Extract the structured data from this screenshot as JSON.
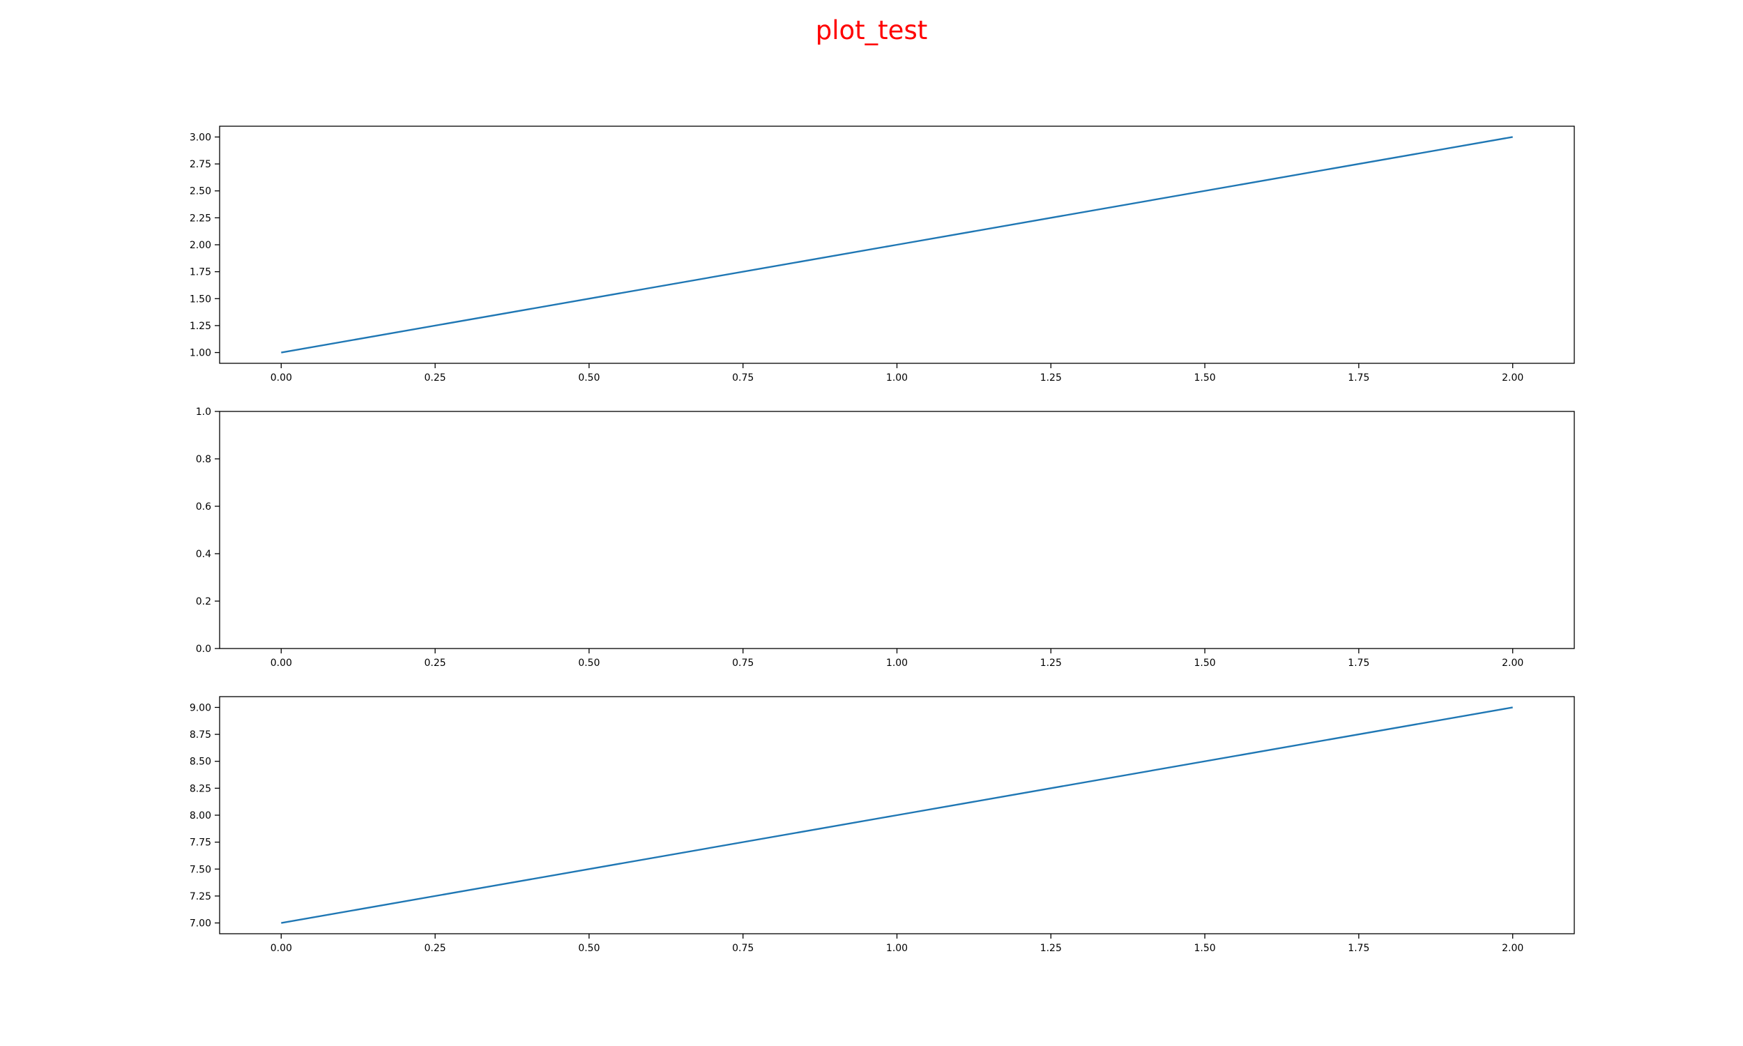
{
  "figure": {
    "title": "plot_test",
    "title_color": "#ff0000"
  },
  "chart_data": [
    {
      "type": "line",
      "title": "",
      "xlabel": "",
      "ylabel": "",
      "xlim": [
        -0.1,
        2.1
      ],
      "ylim": [
        0.9,
        3.1
      ],
      "x_ticks": [
        0,
        0.25,
        0.5,
        0.75,
        1,
        1.25,
        1.5,
        1.75,
        2
      ],
      "x_tick_labels": [
        "0.00",
        "0.25",
        "0.50",
        "0.75",
        "1.00",
        "1.25",
        "1.50",
        "1.75",
        "2.00"
      ],
      "y_ticks": [
        1,
        1.25,
        1.5,
        1.75,
        2,
        2.25,
        2.5,
        2.75,
        3
      ],
      "y_tick_labels": [
        "1.00",
        "1.25",
        "1.50",
        "1.75",
        "2.00",
        "2.25",
        "2.50",
        "2.75",
        "3.00"
      ],
      "grid": false,
      "series": [
        {
          "x": [
            0,
            1,
            2
          ],
          "y": [
            1,
            2,
            3
          ],
          "color": "#1f77b4"
        }
      ]
    },
    {
      "type": "line",
      "title": "",
      "xlabel": "",
      "ylabel": "",
      "xlim": [
        -0.1,
        2.1
      ],
      "ylim": [
        0,
        1
      ],
      "x_ticks": [
        0,
        0.25,
        0.5,
        0.75,
        1,
        1.25,
        1.5,
        1.75,
        2
      ],
      "x_tick_labels": [
        "0.00",
        "0.25",
        "0.50",
        "0.75",
        "1.00",
        "1.25",
        "1.50",
        "1.75",
        "2.00"
      ],
      "y_ticks": [
        0,
        0.2,
        0.4,
        0.6,
        0.8,
        1
      ],
      "y_tick_labels": [
        "0.0",
        "0.2",
        "0.4",
        "0.6",
        "0.8",
        "1.0"
      ],
      "grid": false,
      "series": []
    },
    {
      "type": "line",
      "title": "",
      "xlabel": "",
      "ylabel": "",
      "xlim": [
        -0.1,
        2.1
      ],
      "ylim": [
        6.9,
        9.1
      ],
      "x_ticks": [
        0,
        0.25,
        0.5,
        0.75,
        1,
        1.25,
        1.5,
        1.75,
        2
      ],
      "x_tick_labels": [
        "0.00",
        "0.25",
        "0.50",
        "0.75",
        "1.00",
        "1.25",
        "1.50",
        "1.75",
        "2.00"
      ],
      "y_ticks": [
        7,
        7.25,
        7.5,
        7.75,
        8,
        8.25,
        8.5,
        8.75,
        9
      ],
      "y_tick_labels": [
        "7.00",
        "7.25",
        "7.50",
        "7.75",
        "8.00",
        "8.25",
        "8.50",
        "8.75",
        "9.00"
      ],
      "grid": false,
      "series": [
        {
          "x": [
            0,
            1,
            2
          ],
          "y": [
            7,
            8,
            9
          ],
          "color": "#1f77b4"
        }
      ]
    }
  ]
}
